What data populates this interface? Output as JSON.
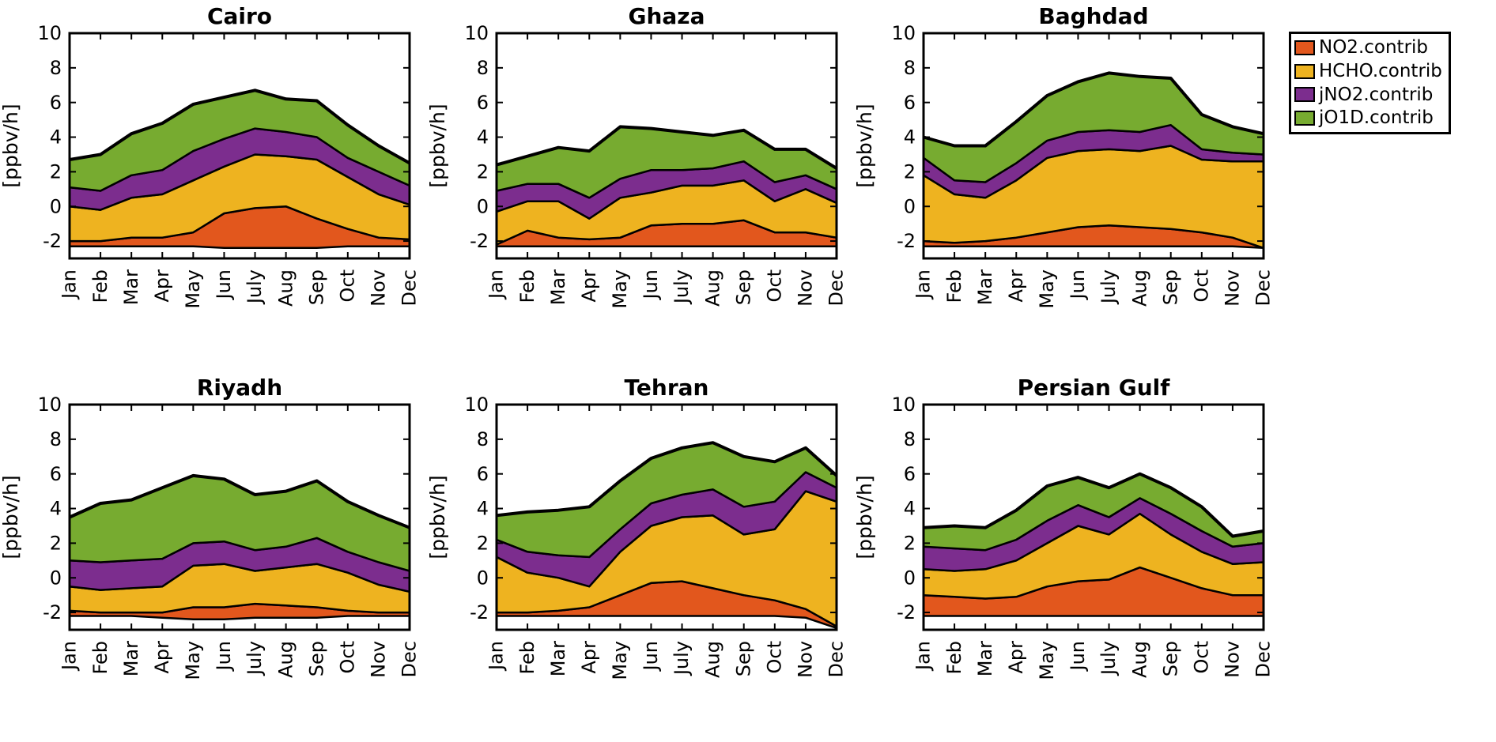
{
  "figure": {
    "ylabel": "[ppbv/h]",
    "months": [
      "Jan",
      "Feb",
      "Mar",
      "Apr",
      "May",
      "Jun",
      "July",
      "Aug",
      "Sep",
      "Oct",
      "Nov",
      "Dec"
    ],
    "yticks": [
      -2,
      0,
      2,
      4,
      6,
      8,
      10
    ],
    "ylim": [
      -3,
      10
    ]
  },
  "legend": {
    "items": [
      {
        "label": "NO2.contrib",
        "color": "#e2571d"
      },
      {
        "label": "HCHO.contrib",
        "color": "#eeb320"
      },
      {
        "label": "jNO2.contrib",
        "color": "#7c2d8e"
      },
      {
        "label": "jO1D.contrib",
        "color": "#77ab30"
      }
    ]
  },
  "chart_data": [
    {
      "type": "area",
      "stacked": true,
      "title": "Cairo",
      "ylabel": "[ppbv/h]",
      "baseline": [
        -2.3,
        -2.3,
        -2.3,
        -2.3,
        -2.3,
        -2.4,
        -2.4,
        -2.4,
        -2.4,
        -2.3,
        -2.3,
        -2.3
      ],
      "series": [
        {
          "name": "NO2.contrib",
          "cumulative_top": [
            -2.0,
            -2.0,
            -1.8,
            -1.8,
            -1.5,
            -0.4,
            -0.1,
            0.0,
            -0.7,
            -1.3,
            -1.8,
            -1.9
          ]
        },
        {
          "name": "HCHO.contrib",
          "cumulative_top": [
            0.0,
            -0.2,
            0.5,
            0.7,
            1.5,
            2.3,
            3.0,
            2.9,
            2.7,
            1.7,
            0.7,
            0.1
          ]
        },
        {
          "name": "jNO2.contrib",
          "cumulative_top": [
            1.1,
            0.9,
            1.8,
            2.1,
            3.2,
            3.9,
            4.5,
            4.3,
            4.0,
            2.8,
            2.0,
            1.2
          ]
        },
        {
          "name": "jO1D.contrib",
          "cumulative_top": [
            2.7,
            3.0,
            4.2,
            4.8,
            5.9,
            6.3,
            6.7,
            6.2,
            6.1,
            4.7,
            3.5,
            2.5
          ]
        }
      ]
    },
    {
      "type": "area",
      "stacked": true,
      "title": "Ghaza",
      "ylabel": "[ppbv/h]",
      "baseline": [
        -2.3,
        -2.3,
        -2.3,
        -2.3,
        -2.3,
        -2.3,
        -2.3,
        -2.3,
        -2.3,
        -2.3,
        -2.3,
        -2.3
      ],
      "series": [
        {
          "name": "NO2.contrib",
          "cumulative_top": [
            -2.2,
            -1.4,
            -1.8,
            -1.9,
            -1.8,
            -1.1,
            -1.0,
            -1.0,
            -0.8,
            -1.5,
            -1.5,
            -1.8
          ]
        },
        {
          "name": "HCHO.contrib",
          "cumulative_top": [
            -0.3,
            0.3,
            0.3,
            -0.7,
            0.5,
            0.8,
            1.2,
            1.2,
            1.5,
            0.3,
            1.0,
            0.2
          ]
        },
        {
          "name": "jNO2.contrib",
          "cumulative_top": [
            0.9,
            1.3,
            1.3,
            0.5,
            1.6,
            2.1,
            2.1,
            2.2,
            2.6,
            1.4,
            1.8,
            1.0
          ]
        },
        {
          "name": "jO1D.contrib",
          "cumulative_top": [
            2.4,
            2.9,
            3.4,
            3.2,
            4.6,
            4.5,
            4.3,
            4.1,
            4.4,
            3.3,
            3.3,
            2.2
          ]
        }
      ]
    },
    {
      "type": "area",
      "stacked": true,
      "title": "Baghdad",
      "ylabel": "[ppbv/h]",
      "baseline": [
        -2.3,
        -2.3,
        -2.3,
        -2.3,
        -2.3,
        -2.3,
        -2.3,
        -2.3,
        -2.3,
        -2.3,
        -2.3,
        -2.4
      ],
      "series": [
        {
          "name": "NO2.contrib",
          "cumulative_top": [
            -2.0,
            -2.1,
            -2.0,
            -1.8,
            -1.5,
            -1.2,
            -1.1,
            -1.2,
            -1.3,
            -1.5,
            -1.8,
            -2.4
          ]
        },
        {
          "name": "HCHO.contrib",
          "cumulative_top": [
            1.8,
            0.7,
            0.5,
            1.5,
            2.8,
            3.2,
            3.3,
            3.2,
            3.5,
            2.7,
            2.6,
            2.6
          ]
        },
        {
          "name": "jNO2.contrib",
          "cumulative_top": [
            2.8,
            1.5,
            1.4,
            2.5,
            3.8,
            4.3,
            4.4,
            4.3,
            4.7,
            3.3,
            3.1,
            3.0
          ]
        },
        {
          "name": "jO1D.contrib",
          "cumulative_top": [
            4.0,
            3.5,
            3.5,
            4.9,
            6.4,
            7.2,
            7.7,
            7.5,
            7.4,
            5.3,
            4.6,
            4.2
          ]
        }
      ]
    },
    {
      "type": "area",
      "stacked": true,
      "title": "Riyadh",
      "ylabel": "[ppbv/h]",
      "baseline": [
        -2.2,
        -2.2,
        -2.2,
        -2.3,
        -2.4,
        -2.4,
        -2.3,
        -2.3,
        -2.3,
        -2.2,
        -2.2,
        -2.2
      ],
      "series": [
        {
          "name": "NO2.contrib",
          "cumulative_top": [
            -1.9,
            -2.0,
            -2.0,
            -2.0,
            -1.7,
            -1.7,
            -1.5,
            -1.6,
            -1.7,
            -1.9,
            -2.0,
            -2.0
          ]
        },
        {
          "name": "HCHO.contrib",
          "cumulative_top": [
            -0.5,
            -0.7,
            -0.6,
            -0.5,
            0.7,
            0.8,
            0.4,
            0.6,
            0.8,
            0.3,
            -0.4,
            -0.8
          ]
        },
        {
          "name": "jNO2.contrib",
          "cumulative_top": [
            1.0,
            0.9,
            1.0,
            1.1,
            2.0,
            2.1,
            1.6,
            1.8,
            2.3,
            1.5,
            0.9,
            0.4
          ]
        },
        {
          "name": "jO1D.contrib",
          "cumulative_top": [
            3.5,
            4.3,
            4.5,
            5.2,
            5.9,
            5.7,
            4.8,
            5.0,
            5.6,
            4.4,
            3.6,
            2.9
          ]
        }
      ]
    },
    {
      "type": "area",
      "stacked": true,
      "title": "Tehran",
      "ylabel": "[ppbv/h]",
      "baseline": [
        -2.2,
        -2.2,
        -2.2,
        -2.2,
        -2.2,
        -2.2,
        -2.2,
        -2.2,
        -2.2,
        -2.2,
        -2.3,
        -2.9
      ],
      "series": [
        {
          "name": "NO2.contrib",
          "cumulative_top": [
            -2.0,
            -2.0,
            -1.9,
            -1.7,
            -1.0,
            -0.3,
            -0.2,
            -0.6,
            -1.0,
            -1.3,
            -1.8,
            -2.8
          ]
        },
        {
          "name": "HCHO.contrib",
          "cumulative_top": [
            1.2,
            0.3,
            0.0,
            -0.5,
            1.5,
            3.0,
            3.5,
            3.6,
            2.5,
            2.8,
            5.0,
            4.4
          ]
        },
        {
          "name": "jNO2.contrib",
          "cumulative_top": [
            2.2,
            1.5,
            1.3,
            1.2,
            2.8,
            4.3,
            4.8,
            5.1,
            4.1,
            4.4,
            6.1,
            5.2
          ]
        },
        {
          "name": "jO1D.contrib",
          "cumulative_top": [
            3.6,
            3.8,
            3.9,
            4.1,
            5.6,
            6.9,
            7.5,
            7.8,
            7.0,
            6.7,
            7.5,
            5.9
          ]
        }
      ]
    },
    {
      "type": "area",
      "stacked": true,
      "title": "Persian Gulf",
      "ylabel": "[ppbv/h]",
      "baseline": [
        -2.2,
        -2.2,
        -2.2,
        -2.2,
        -2.2,
        -2.2,
        -2.2,
        -2.2,
        -2.2,
        -2.2,
        -2.2,
        -2.2
      ],
      "series": [
        {
          "name": "NO2.contrib",
          "cumulative_top": [
            -1.0,
            -1.1,
            -1.2,
            -1.1,
            -0.5,
            -0.2,
            -0.1,
            0.6,
            0.0,
            -0.6,
            -1.0,
            -1.0
          ]
        },
        {
          "name": "HCHO.contrib",
          "cumulative_top": [
            0.5,
            0.4,
            0.5,
            1.0,
            2.0,
            3.0,
            2.5,
            3.7,
            2.5,
            1.5,
            0.8,
            0.9
          ]
        },
        {
          "name": "jNO2.contrib",
          "cumulative_top": [
            1.8,
            1.7,
            1.6,
            2.2,
            3.3,
            4.2,
            3.5,
            4.6,
            3.7,
            2.7,
            1.8,
            2.0
          ]
        },
        {
          "name": "jO1D.contrib",
          "cumulative_top": [
            2.9,
            3.0,
            2.9,
            3.9,
            5.3,
            5.8,
            5.2,
            6.0,
            5.2,
            4.1,
            2.4,
            2.7
          ]
        }
      ]
    }
  ]
}
